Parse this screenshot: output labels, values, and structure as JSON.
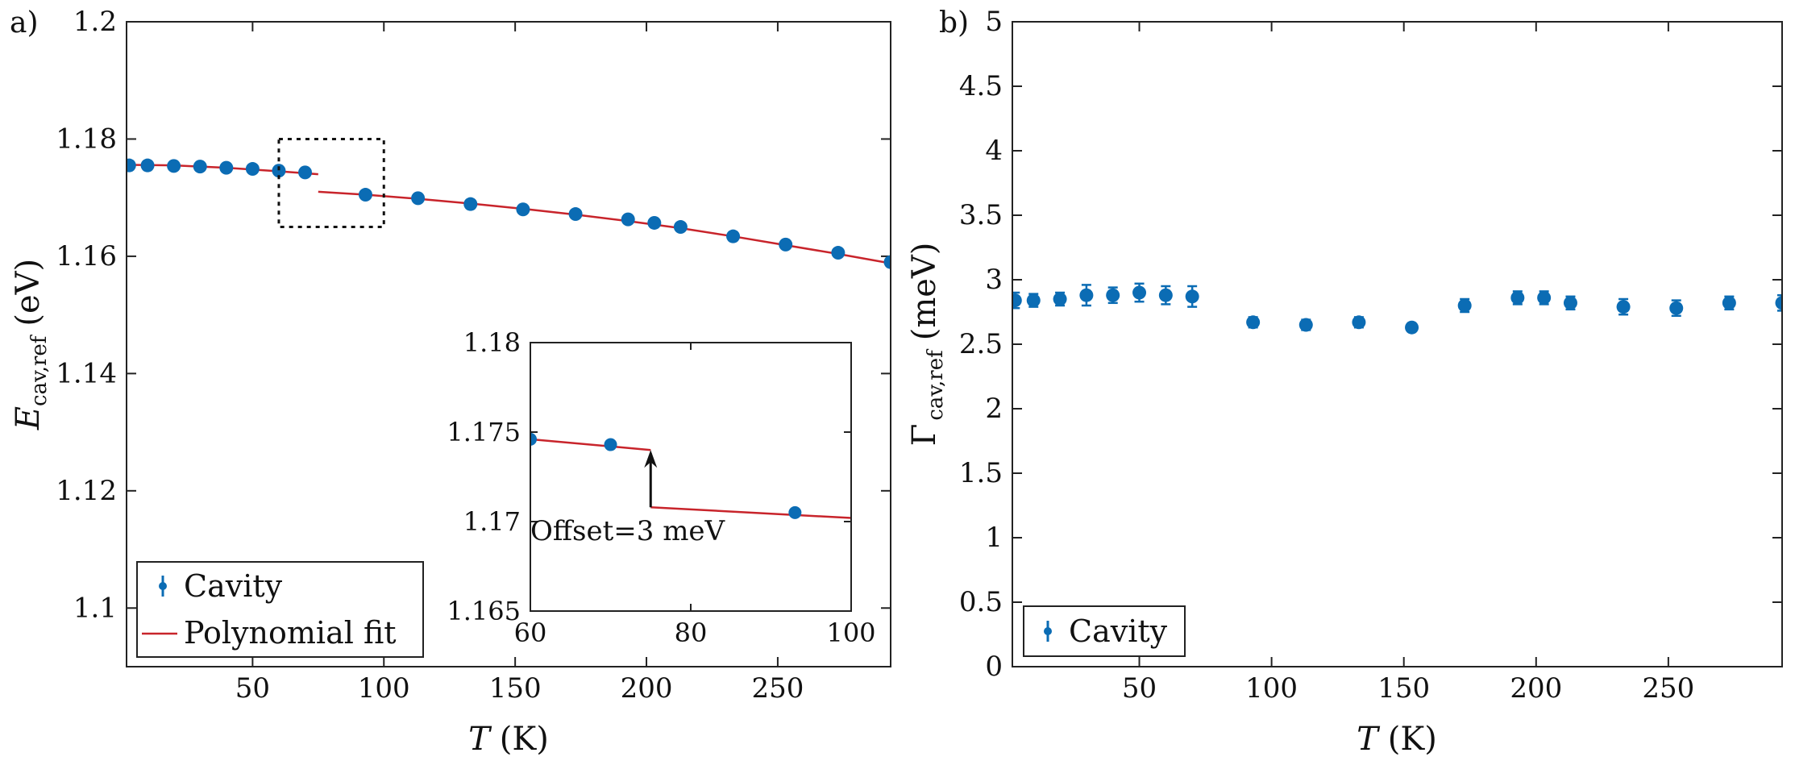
{
  "chart_data": [
    {
      "type": "scatter",
      "panel_label": "a)",
      "xlabel_var": "T",
      "xlabel_unit": "(K)",
      "ylabel_var": "E",
      "ylabel_sub": "cav,ref",
      "ylabel_unit": "(eV)",
      "xlim": [
        2,
        293
      ],
      "ylim": [
        1.09,
        1.2
      ],
      "xticks": [
        {
          "v": 50,
          "label": "50"
        },
        {
          "v": 100,
          "label": "100"
        },
        {
          "v": 150,
          "label": "150"
        },
        {
          "v": 200,
          "label": "200"
        },
        {
          "v": 250,
          "label": "250"
        }
      ],
      "yticks": [
        {
          "v": 1.1,
          "label": "1.1"
        },
        {
          "v": 1.12,
          "label": "1.12"
        },
        {
          "v": 1.14,
          "label": "1.14"
        },
        {
          "v": 1.16,
          "label": "1.16"
        },
        {
          "v": 1.18,
          "label": "1.18"
        },
        {
          "v": 1.2,
          "label": "1.2"
        }
      ],
      "series": [
        {
          "name": "Cavity",
          "color": "#0b6cb4",
          "x": [
            3,
            10,
            20,
            30,
            40,
            50,
            60,
            70,
            93,
            113,
            133,
            153,
            173,
            193,
            203,
            213,
            233,
            253,
            273,
            293
          ],
          "y": [
            1.1755,
            1.1755,
            1.1754,
            1.1753,
            1.1751,
            1.1749,
            1.1746,
            1.1743,
            1.1705,
            1.1699,
            1.1689,
            1.168,
            1.1672,
            1.1663,
            1.1657,
            1.165,
            1.1634,
            1.162,
            1.1606,
            1.159
          ]
        },
        {
          "name": "Polynomial fit",
          "color": "#c8242b",
          "segments": [
            {
              "x": [
                3,
                20,
                40,
                60,
                75
              ],
              "y": [
                1.1756,
                1.1755,
                1.1751,
                1.1745,
                1.174
              ]
            },
            {
              "x": [
                75,
                93,
                113,
                133,
                153,
                173,
                193,
                213,
                233,
                253,
                273,
                293
              ],
              "y": [
                1.171,
                1.1705,
                1.1698,
                1.169,
                1.1681,
                1.1671,
                1.166,
                1.1648,
                1.1634,
                1.1619,
                1.1604,
                1.1588
              ]
            }
          ]
        }
      ],
      "zoom_box": {
        "x": [
          60,
          100
        ],
        "y": [
          1.165,
          1.18
        ]
      },
      "legend": {
        "position": "bottom-left",
        "entries": [
          "Cavity",
          "Polynomial fit"
        ]
      },
      "inset": {
        "xlim": [
          60,
          100
        ],
        "ylim": [
          1.165,
          1.18
        ],
        "xticks": [
          {
            "v": 60,
            "label": "60"
          },
          {
            "v": 80,
            "label": "80"
          },
          {
            "v": 100,
            "label": "100"
          }
        ],
        "yticks": [
          {
            "v": 1.165,
            "label": "1.165"
          },
          {
            "v": 1.17,
            "label": "1.17"
          },
          {
            "v": 1.175,
            "label": "1.175"
          },
          {
            "v": 1.18,
            "label": "1.18"
          }
        ],
        "points": {
          "x": [
            60,
            70,
            93
          ],
          "y": [
            1.1746,
            1.1743,
            1.1705
          ]
        },
        "fit_segments": [
          {
            "x": [
              60,
              75
            ],
            "y": [
              1.1746,
              1.174
            ]
          },
          {
            "x": [
              75,
              100
            ],
            "y": [
              1.1708,
              1.1702
            ]
          }
        ],
        "arrow": {
          "x": 75,
          "y_from": 1.1708,
          "y_to": 1.174
        },
        "annotation": "Offset=3 meV"
      }
    },
    {
      "type": "scatter",
      "panel_label": "b)",
      "xlabel_var": "T",
      "xlabel_unit": "(K)",
      "ylabel_var": "Γ",
      "ylabel_sub": "cav,ref",
      "ylabel_unit": "(meV)",
      "xlim": [
        2,
        293
      ],
      "ylim": [
        0,
        5
      ],
      "xticks": [
        {
          "v": 50,
          "label": "50"
        },
        {
          "v": 100,
          "label": "100"
        },
        {
          "v": 150,
          "label": "150"
        },
        {
          "v": 200,
          "label": "200"
        },
        {
          "v": 250,
          "label": "250"
        }
      ],
      "yticks": [
        {
          "v": 0,
          "label": "0"
        },
        {
          "v": 0.5,
          "label": "0.5"
        },
        {
          "v": 1,
          "label": "1"
        },
        {
          "v": 1.5,
          "label": "1.5"
        },
        {
          "v": 2,
          "label": "2"
        },
        {
          "v": 2.5,
          "label": "2.5"
        },
        {
          "v": 3,
          "label": "3"
        },
        {
          "v": 3.5,
          "label": "3.5"
        },
        {
          "v": 4,
          "label": "4"
        },
        {
          "v": 4.5,
          "label": "4.5"
        },
        {
          "v": 5,
          "label": "5"
        }
      ],
      "series": [
        {
          "name": "Cavity",
          "color": "#0b6cb4",
          "x": [
            3,
            10,
            20,
            30,
            40,
            50,
            60,
            70,
            93,
            113,
            133,
            153,
            173,
            193,
            203,
            213,
            233,
            253,
            273,
            293
          ],
          "y": [
            2.84,
            2.84,
            2.85,
            2.88,
            2.88,
            2.9,
            2.88,
            2.87,
            2.67,
            2.65,
            2.67,
            2.63,
            2.8,
            2.86,
            2.86,
            2.82,
            2.79,
            2.78,
            2.82,
            2.82
          ],
          "err": [
            0.06,
            0.05,
            0.05,
            0.08,
            0.06,
            0.07,
            0.07,
            0.08,
            0.04,
            0.04,
            0.04,
            0.03,
            0.05,
            0.05,
            0.05,
            0.05,
            0.06,
            0.06,
            0.05,
            0.06
          ]
        }
      ],
      "legend": {
        "position": "bottom-left",
        "entries": [
          "Cavity"
        ]
      }
    }
  ]
}
